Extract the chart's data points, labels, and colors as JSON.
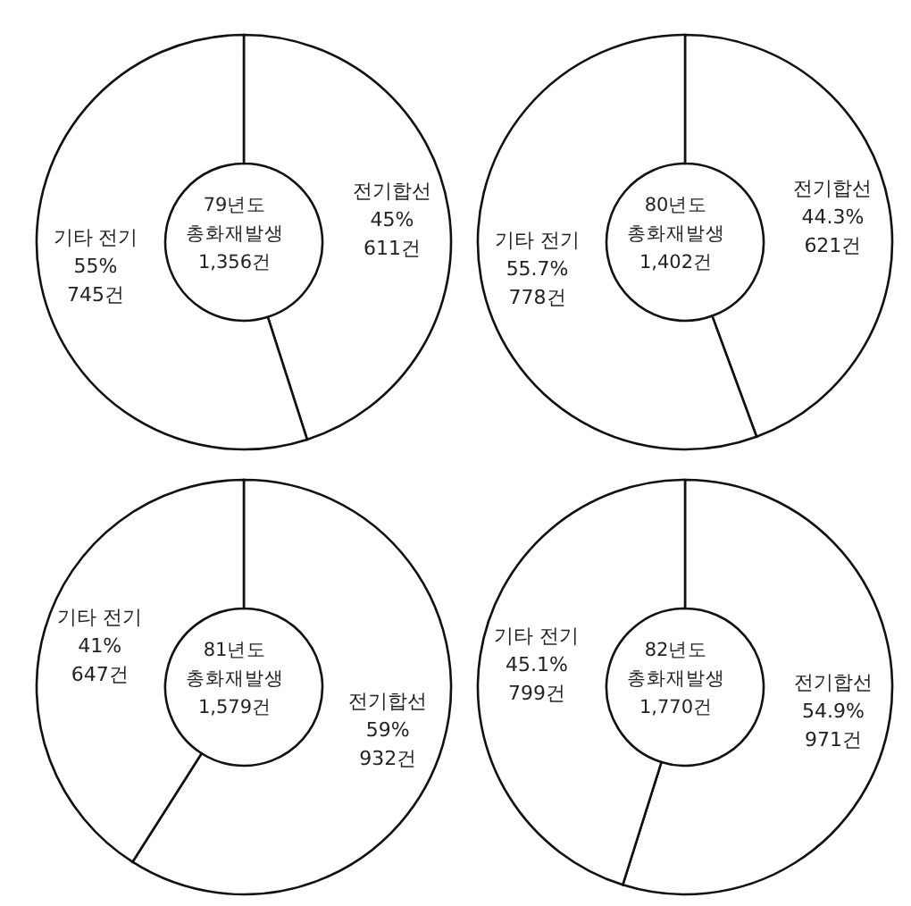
{
  "chart_data": [
    {
      "type": "donut",
      "title": "79년도",
      "subtitle": "총화재발생",
      "annotations": [
        "1,356건"
      ],
      "categories": [
        "전기합선",
        "기타 전기"
      ],
      "values": [
        611,
        745
      ],
      "value_labels": [
        "45%\n611건",
        "55%\n745건"
      ],
      "colors": [
        "#ffffff",
        "#ffffff"
      ]
    },
    {
      "type": "donut",
      "title": "80년도",
      "subtitle": "총화재발생",
      "annotations": [
        "1,402건"
      ],
      "categories": [
        "전기합선",
        "기타 전기"
      ],
      "values": [
        621,
        778
      ],
      "value_labels": [
        "44.3%\n621건",
        "55.7%\n778건"
      ],
      "colors": [
        "#ffffff",
        "#ffffff"
      ]
    },
    {
      "type": "donut",
      "title": "81년도",
      "subtitle": "총화재발생",
      "annotations": [
        "1,579건"
      ],
      "categories": [
        "전기합선",
        "기타 전기"
      ],
      "values": [
        932,
        647
      ],
      "value_labels": [
        "59%\n932건",
        "41%\n647건"
      ],
      "colors": [
        "#ffffff",
        "#ffffff"
      ]
    },
    {
      "type": "donut",
      "title": "82년도",
      "subtitle": "총화재발생",
      "annotations": [
        "1,770건"
      ],
      "categories": [
        "전기합선",
        "기타 전기"
      ],
      "values": [
        971,
        799
      ],
      "value_labels": [
        "54.9%\n971건",
        "45.1%\n799건"
      ],
      "colors": [
        "#ffffff",
        "#ffffff"
      ]
    }
  ]
}
